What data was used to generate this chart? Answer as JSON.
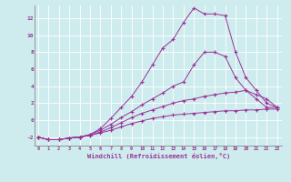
{
  "xlabel": "Windchill (Refroidissement éolien,°C)",
  "background_color": "#ceeced",
  "line_color": "#993399",
  "grid_color": "#b0d8da",
  "x_ticks": [
    0,
    1,
    2,
    3,
    4,
    5,
    6,
    7,
    8,
    9,
    10,
    11,
    12,
    13,
    14,
    15,
    16,
    17,
    18,
    19,
    20,
    21,
    22,
    23
  ],
  "y_ticks": [
    -2,
    0,
    2,
    4,
    6,
    8,
    10,
    12
  ],
  "ylim": [
    -3.0,
    13.5
  ],
  "xlim": [
    -0.3,
    23.5
  ],
  "lines": [
    {
      "x": [
        0,
        1,
        2,
        3,
        4,
        5,
        6,
        7,
        8,
        9,
        10,
        11,
        12,
        13,
        14,
        15,
        16,
        17,
        18,
        19,
        20,
        21,
        22,
        23
      ],
      "y": [
        -2,
        -2.3,
        -2.3,
        -2.1,
        -2.0,
        -1.8,
        -1.5,
        -1.2,
        -0.8,
        -0.4,
        -0.1,
        0.2,
        0.4,
        0.6,
        0.7,
        0.8,
        0.9,
        1.0,
        1.1,
        1.1,
        1.2,
        1.2,
        1.3,
        1.3
      ]
    },
    {
      "x": [
        0,
        1,
        2,
        3,
        4,
        5,
        6,
        7,
        8,
        9,
        10,
        11,
        12,
        13,
        14,
        15,
        16,
        17,
        18,
        19,
        20,
        21,
        22,
        23
      ],
      "y": [
        -2,
        -2.3,
        -2.3,
        -2.1,
        -2.0,
        -1.8,
        -1.4,
        -0.9,
        -0.3,
        0.3,
        0.8,
        1.2,
        1.6,
        2.0,
        2.3,
        2.5,
        2.8,
        3.0,
        3.2,
        3.3,
        3.5,
        3.0,
        2.5,
        1.5
      ]
    },
    {
      "x": [
        0,
        1,
        2,
        3,
        4,
        5,
        6,
        7,
        8,
        9,
        10,
        11,
        12,
        13,
        14,
        15,
        16,
        17,
        18,
        19,
        20,
        21,
        22,
        23
      ],
      "y": [
        -2,
        -2.3,
        -2.3,
        -2.1,
        -2.0,
        -1.7,
        -1.2,
        -0.5,
        0.3,
        1.0,
        1.8,
        2.5,
        3.2,
        4.0,
        4.5,
        6.5,
        8.0,
        8.0,
        7.5,
        5.0,
        3.5,
        2.5,
        1.5,
        1.5
      ]
    },
    {
      "x": [
        0,
        1,
        2,
        3,
        4,
        5,
        6,
        7,
        8,
        9,
        10,
        11,
        12,
        13,
        14,
        15,
        16,
        17,
        18,
        19,
        20,
        21,
        22,
        23
      ],
      "y": [
        -2,
        -2.3,
        -2.3,
        -2.1,
        -2.0,
        -1.7,
        -1.0,
        0.2,
        1.5,
        2.8,
        4.5,
        6.5,
        8.5,
        9.5,
        11.5,
        13.2,
        12.5,
        12.5,
        12.3,
        8.0,
        5.0,
        3.5,
        2.0,
        1.5
      ]
    }
  ]
}
